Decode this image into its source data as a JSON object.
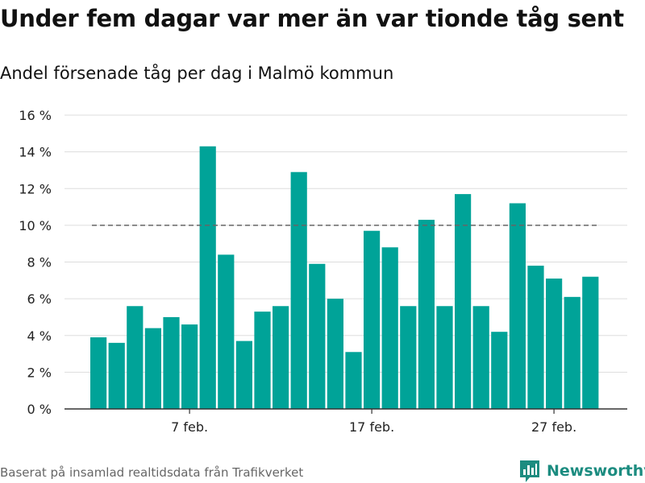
{
  "title": "Under fem dagar var mer än var tionde tåg sent",
  "subtitle": "Andel försenade tåg per dag i Malmö kommun",
  "source": "Baserat på insamlad realtidsdata från Trafikverket",
  "brand": {
    "name": "Newsworthy",
    "icon": "newsworthy-logo-icon"
  },
  "colors": {
    "bar": "#00a398",
    "reference_line": "#666666",
    "grid": "#dddddd",
    "brand": "#1c8c80"
  },
  "chart_data": {
    "type": "bar",
    "x_tick_labels": [
      {
        "date": "2022-02-07",
        "label": "7 feb."
      },
      {
        "date": "2022-02-17",
        "label": "17 feb."
      },
      {
        "date": "2022-02-27",
        "label": "27 feb."
      }
    ],
    "x": [
      "2022-02-02",
      "2022-02-03",
      "2022-02-04",
      "2022-02-05",
      "2022-02-06",
      "2022-02-07",
      "2022-02-08",
      "2022-02-09",
      "2022-02-10",
      "2022-02-11",
      "2022-02-12",
      "2022-02-13",
      "2022-02-14",
      "2022-02-15",
      "2022-02-16",
      "2022-02-17",
      "2022-02-18",
      "2022-02-19",
      "2022-02-20",
      "2022-02-21",
      "2022-02-22",
      "2022-02-23",
      "2022-02-24",
      "2022-02-25",
      "2022-02-26",
      "2022-02-27",
      "2022-02-28",
      "2022-03-01"
    ],
    "values": [
      3.9,
      3.6,
      5.6,
      4.4,
      5.0,
      4.6,
      14.3,
      8.4,
      3.7,
      5.3,
      5.6,
      12.9,
      7.9,
      6.0,
      3.1,
      9.7,
      8.8,
      5.6,
      10.3,
      5.6,
      11.7,
      5.6,
      4.2,
      11.2,
      7.8,
      7.1,
      6.1,
      7.2
    ],
    "reference_line": {
      "value": 10,
      "from": "2022-02-02",
      "to": "2022-03-01",
      "style": "dashed"
    },
    "ylim": [
      0,
      16
    ],
    "y_ticks": [
      {
        "value": 0,
        "label": "0 %"
      },
      {
        "value": 2,
        "label": "2 %"
      },
      {
        "value": 4,
        "label": "4 %"
      },
      {
        "value": 6,
        "label": "6 %"
      },
      {
        "value": 8,
        "label": "8 %"
      },
      {
        "value": 10,
        "label": "10 %"
      },
      {
        "value": 12,
        "label": "12 %"
      },
      {
        "value": 14,
        "label": "14 %"
      },
      {
        "value": 16,
        "label": "16 %"
      }
    ],
    "grid": true,
    "legend": "none",
    "xlabel": "",
    "ylabel": ""
  }
}
